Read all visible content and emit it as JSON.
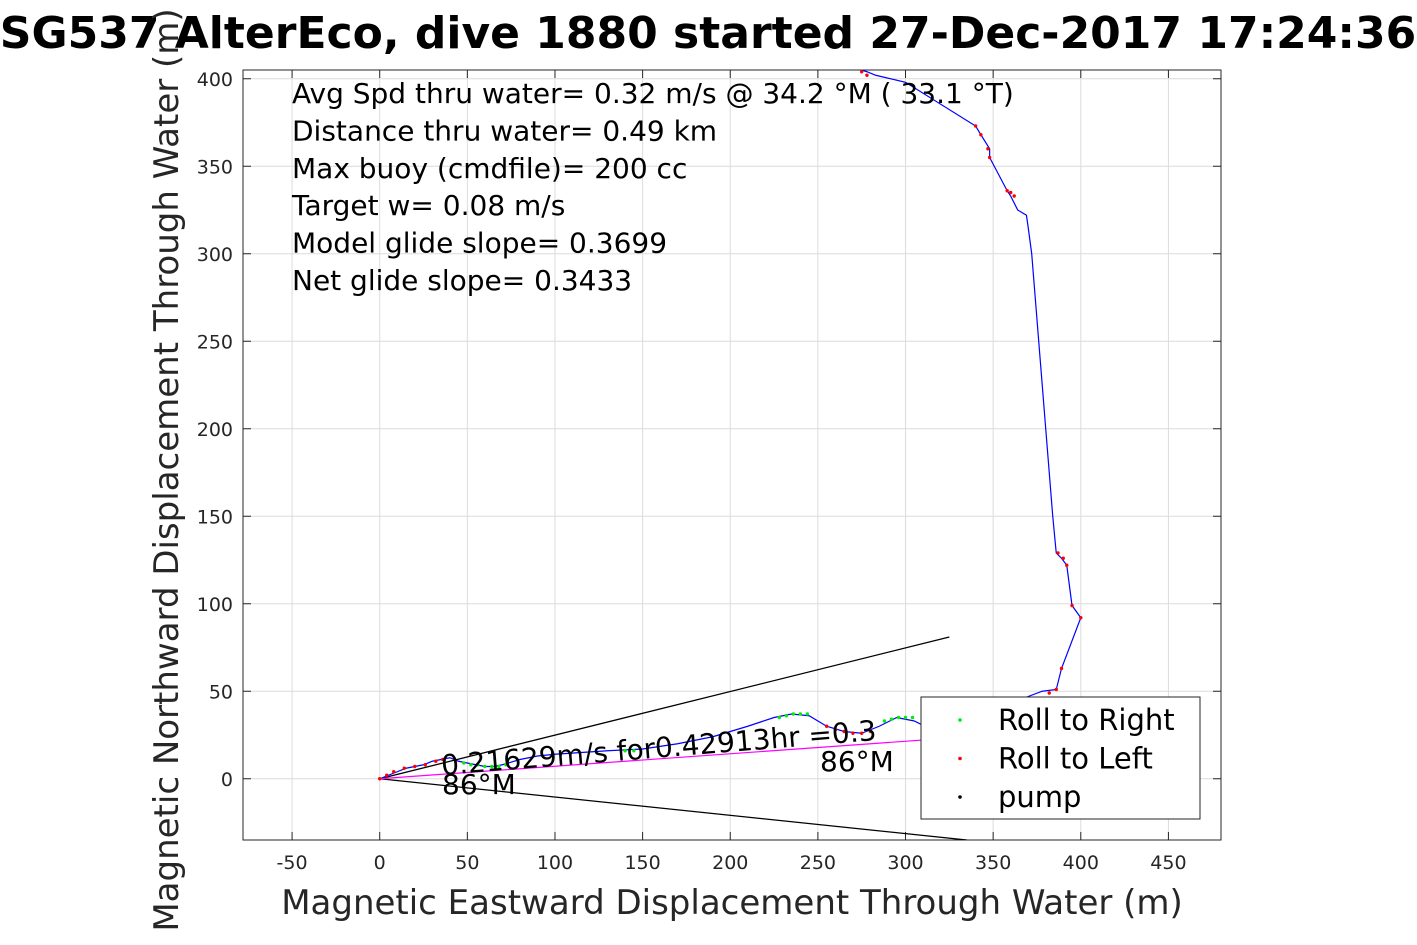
{
  "chart_data": {
    "type": "line",
    "title": "SG537 AlterEco, dive 1880 started 27-Dec-2017 17:24:36",
    "xlabel": "Magnetic Eastward Displacement Through Water (m)",
    "ylabel": "Magnetic Northward Displacement Through Water (m)",
    "xlim": [
      -78,
      480
    ],
    "ylim": [
      -35,
      405
    ],
    "xticks": [
      -50,
      0,
      50,
      100,
      150,
      200,
      250,
      300,
      350,
      400,
      450
    ],
    "yticks": [
      0,
      50,
      100,
      150,
      200,
      250,
      300,
      350,
      400
    ],
    "grid": true,
    "legend_position": "bottom-right",
    "stats_lines": [
      "Avg Spd thru water=  0.32 m/s @  34.2 °M ( 33.1 °T)",
      "Distance thru water=  0.49 km",
      "Max buoy (cmdfile)= 200 cc",
      "Target w= 0.08 m/s",
      "Model glide slope= 0.3699",
      "Net glide slope= 0.3433"
    ],
    "annotations": {
      "speed_text": "0.21629m/s for0.42913hr =0.3",
      "heading_label_1": "86°M",
      "heading_label_2": "86°M",
      "heading_label_3": "86°M"
    },
    "series": [
      {
        "name": "track",
        "color": "#0000ff",
        "x": [
          0,
          5,
          10,
          15,
          20,
          25,
          30,
          35,
          40,
          45,
          50,
          55,
          60,
          65,
          70,
          80,
          90,
          100,
          115,
          130,
          150,
          170,
          190,
          210,
          225,
          235,
          245,
          255,
          265,
          275,
          285,
          295,
          305,
          315,
          325,
          335,
          345,
          355,
          362,
          370,
          378,
          386,
          389,
          400,
          395,
          392,
          389,
          386,
          384,
          382,
          380,
          378,
          376,
          374,
          372,
          370,
          369,
          364,
          360,
          358,
          348,
          348,
          343,
          340,
          300,
          283,
          278,
          275
        ],
        "y": [
          0,
          2,
          4,
          6,
          7,
          8,
          10,
          11,
          12,
          10,
          9,
          8,
          7,
          7,
          8,
          11,
          13,
          14,
          15,
          16,
          17,
          20,
          24,
          30,
          35,
          37,
          36,
          30,
          27,
          26,
          30,
          35,
          33,
          28,
          23,
          25,
          31,
          38,
          44,
          47,
          50,
          51,
          63,
          92,
          99,
          122,
          126,
          129,
          150,
          175,
          200,
          225,
          250,
          275,
          300,
          315,
          322,
          325,
          333,
          336,
          355,
          360,
          368,
          373,
          398,
          402,
          404,
          405
        ]
      },
      {
        "name": "heading_line",
        "color": "#ff00ff",
        "x": [
          0,
          350
        ],
        "y": [
          0,
          25
        ]
      },
      {
        "name": "Roll to Right",
        "color": "#00ee00",
        "marker": "dot",
        "x": [
          48,
          52,
          56,
          60,
          64,
          68,
          72,
          140,
          145,
          228,
          232,
          236,
          240,
          244,
          288,
          292,
          296,
          300,
          304
        ],
        "y": [
          9,
          8,
          8,
          7,
          7,
          7,
          8,
          16,
          16,
          35,
          36,
          37,
          37,
          37,
          33,
          34,
          35,
          35,
          35
        ]
      },
      {
        "name": "Roll to Left",
        "color": "#ff0000",
        "marker": "dot",
        "x": [
          0,
          4,
          8,
          14,
          20,
          26,
          32,
          36,
          255,
          260,
          265,
          270,
          275,
          280,
          389,
          390,
          392,
          395,
          400,
          386,
          387,
          382,
          362,
          360,
          358,
          348,
          347,
          343,
          340,
          278,
          275
        ],
        "y": [
          0,
          2,
          4,
          6,
          7,
          8,
          10,
          11,
          30,
          28,
          27,
          26,
          26,
          27,
          63,
          126,
          122,
          99,
          92,
          51,
          129,
          49,
          333,
          335,
          336,
          355,
          360,
          368,
          373,
          402,
          404
        ]
      },
      {
        "name": "pump",
        "color": "#000000",
        "marker": "dot",
        "x": [],
        "y": []
      }
    ],
    "cone_lines": [
      {
        "x": [
          0,
          325
        ],
        "y": [
          0,
          81
        ]
      },
      {
        "x": [
          0,
          335
        ],
        "y": [
          0,
          -35
        ]
      }
    ]
  }
}
